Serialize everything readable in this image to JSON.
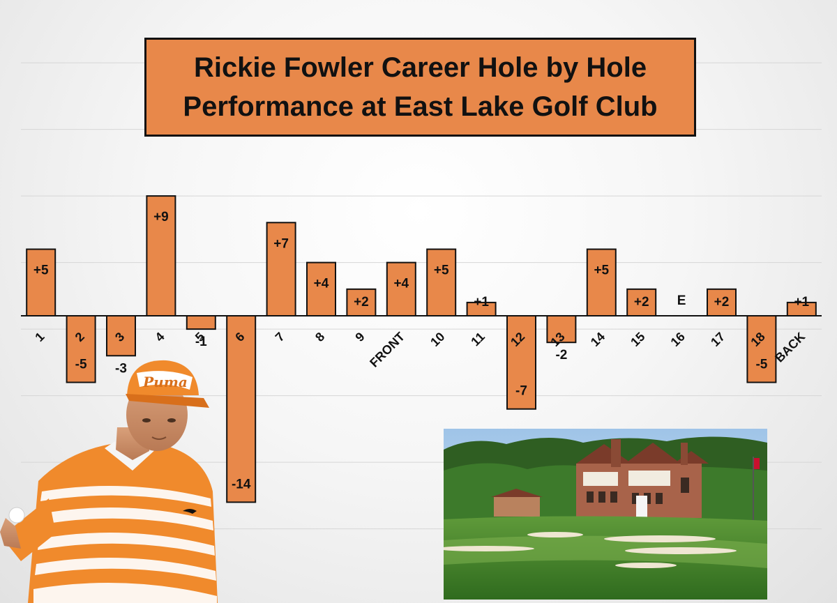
{
  "chart_data": {
    "type": "bar",
    "title": "Rickie Fowler Career Hole by Hole Performance at East Lake Golf Club",
    "categories": [
      "1",
      "2",
      "3",
      "4",
      "5",
      "6",
      "7",
      "8",
      "9",
      "FRONT",
      "10",
      "11",
      "12",
      "13",
      "14",
      "15",
      "16",
      "17",
      "18",
      "BACK"
    ],
    "values": [
      5,
      -5,
      -3,
      9,
      -1,
      -14,
      7,
      4,
      2,
      4,
      5,
      1,
      -7,
      -2,
      5,
      2,
      0,
      2,
      -5,
      1
    ],
    "data_labels": [
      "+5",
      "-5",
      "-3",
      "+9",
      "-1",
      "-14",
      "+7",
      "+4",
      "+2",
      "+4",
      "+5",
      "+1",
      "-7",
      "-2",
      "+5",
      "+2",
      "E",
      "+2",
      "-5",
      "+1"
    ],
    "ylim": [
      -16,
      20
    ],
    "grid": true,
    "legend": "none",
    "bar_color": "#e8884a",
    "bar_border": "#111111"
  },
  "images": {
    "player_photo": "golfer-in-orange-puma-shirt-icon",
    "course_photo": "east-lake-clubhouse-icon",
    "player_cap_text": "Puma"
  }
}
